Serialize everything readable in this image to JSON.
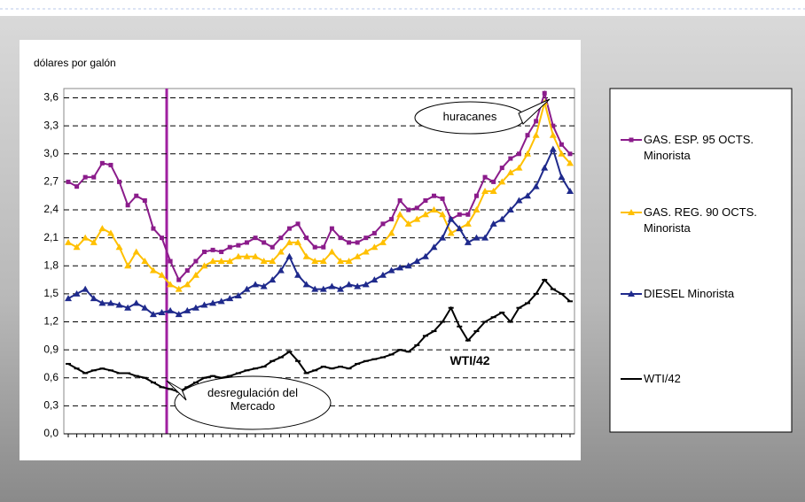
{
  "chart_data": {
    "type": "line",
    "y_label": "dólares por galón",
    "categories": [
      null,
      null,
      null,
      null,
      null,
      null,
      null,
      null,
      null,
      null,
      null,
      null,
      null,
      null,
      null,
      null,
      null,
      null,
      null,
      null,
      null,
      null,
      null,
      null,
      null,
      null,
      null,
      null,
      null,
      null,
      null,
      null,
      null,
      null,
      null,
      null,
      null,
      null,
      null,
      null,
      null,
      null,
      null,
      null,
      null,
      null,
      null,
      null,
      null,
      null,
      null,
      null,
      null,
      null,
      null,
      null,
      null,
      null,
      null,
      null
    ],
    "ylim": [
      0,
      3.7
    ],
    "yticks": [
      {
        "value": 0,
        "label": "0,0"
      },
      {
        "value": 0.3,
        "label": "0,3"
      },
      {
        "value": 0.6,
        "label": "0,6"
      },
      {
        "value": 0.9,
        "label": "0,9"
      },
      {
        "value": 1.2,
        "label": "1,2"
      },
      {
        "value": 1.5,
        "label": "1,5"
      },
      {
        "value": 1.8,
        "label": "1,8"
      },
      {
        "value": 2.1,
        "label": "2,1"
      },
      {
        "value": 2.4,
        "label": "2,4"
      },
      {
        "value": 2.7,
        "label": "2,7"
      },
      {
        "value": 3.0,
        "label": "3,0"
      },
      {
        "value": 3.3,
        "label": "3,3"
      },
      {
        "value": 3.6,
        "label": "3,6"
      }
    ],
    "grid": true,
    "legend": "right",
    "annotations": [
      "huracanes",
      "desregulación del Mercado",
      "WTI/42"
    ],
    "series": [
      {
        "name": "GAS. ESP. 95 OCTS. Minorista",
        "color": "#8b1c8b",
        "marker": "square",
        "values": [
          2.7,
          2.65,
          2.75,
          2.75,
          2.9,
          2.88,
          2.7,
          2.45,
          2.55,
          2.5,
          2.2,
          2.1,
          1.85,
          1.65,
          1.75,
          1.85,
          1.95,
          1.97,
          1.95,
          2.0,
          2.02,
          2.05,
          2.1,
          2.05,
          2.0,
          2.1,
          2.2,
          2.25,
          2.1,
          2.0,
          2.0,
          2.2,
          2.1,
          2.05,
          2.05,
          2.1,
          2.15,
          2.25,
          2.3,
          2.5,
          2.4,
          2.42,
          2.5,
          2.55,
          2.52,
          2.3,
          2.35,
          2.35,
          2.55,
          2.75,
          2.7,
          2.85,
          2.95,
          3.0,
          3.2,
          3.35,
          3.65,
          3.3,
          3.1,
          3.0
        ]
      },
      {
        "name": "GAS. REG. 90 OCTS. Minorista",
        "color": "#ffc000",
        "marker": "triangle",
        "values": [
          2.05,
          2.0,
          2.1,
          2.05,
          2.2,
          2.15,
          2.0,
          1.8,
          1.95,
          1.85,
          1.75,
          1.7,
          1.6,
          1.55,
          1.6,
          1.7,
          1.8,
          1.85,
          1.85,
          1.85,
          1.9,
          1.9,
          1.9,
          1.85,
          1.85,
          1.95,
          2.05,
          2.05,
          1.9,
          1.85,
          1.85,
          1.95,
          1.85,
          1.85,
          1.9,
          1.95,
          2.0,
          2.05,
          2.15,
          2.35,
          2.25,
          2.3,
          2.35,
          2.4,
          2.35,
          2.15,
          2.2,
          2.25,
          2.4,
          2.6,
          2.6,
          2.7,
          2.8,
          2.85,
          3.0,
          3.2,
          3.55,
          3.2,
          3.0,
          2.9
        ]
      },
      {
        "name": "DIESEL Minorista",
        "color": "#1f2a8c",
        "marker": "triangle",
        "values": [
          1.45,
          1.5,
          1.55,
          1.45,
          1.4,
          1.4,
          1.38,
          1.35,
          1.4,
          1.35,
          1.28,
          1.3,
          1.32,
          1.28,
          1.32,
          1.35,
          1.38,
          1.4,
          1.42,
          1.45,
          1.48,
          1.55,
          1.6,
          1.58,
          1.65,
          1.75,
          1.9,
          1.7,
          1.6,
          1.55,
          1.55,
          1.58,
          1.55,
          1.6,
          1.58,
          1.6,
          1.65,
          1.7,
          1.75,
          1.78,
          1.8,
          1.85,
          1.9,
          2.0,
          2.1,
          2.3,
          2.2,
          2.05,
          2.1,
          2.1,
          2.25,
          2.3,
          2.4,
          2.5,
          2.55,
          2.65,
          2.85,
          3.05,
          2.75,
          2.6
        ]
      },
      {
        "name": "WTI/42",
        "color": "#000000",
        "marker": "dash",
        "values": [
          0.75,
          0.7,
          0.65,
          0.68,
          0.7,
          0.68,
          0.65,
          0.65,
          0.62,
          0.6,
          0.55,
          0.5,
          0.48,
          0.45,
          0.5,
          0.55,
          0.6,
          0.62,
          0.6,
          0.62,
          0.65,
          0.68,
          0.7,
          0.72,
          0.78,
          0.82,
          0.88,
          0.78,
          0.65,
          0.68,
          0.72,
          0.7,
          0.72,
          0.7,
          0.75,
          0.78,
          0.8,
          0.82,
          0.85,
          0.9,
          0.88,
          0.95,
          1.05,
          1.1,
          1.2,
          1.35,
          1.15,
          1.0,
          1.1,
          1.2,
          1.25,
          1.3,
          1.2,
          1.35,
          1.4,
          1.5,
          1.65,
          1.55,
          1.5,
          1.42
        ]
      }
    ]
  }
}
